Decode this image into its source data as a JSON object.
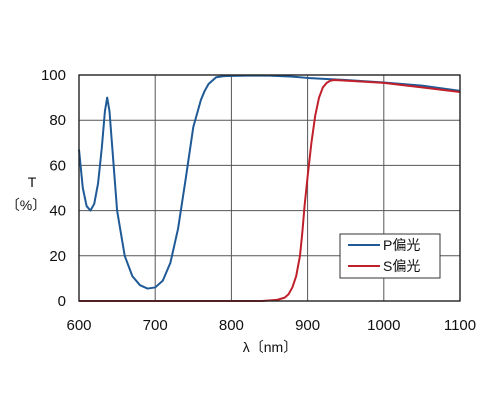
{
  "chart_data": {
    "type": "line",
    "xlabel": "λ〔nm〕",
    "ylabel_line1": "T",
    "ylabel_line2": "〔%〕",
    "xlim": [
      600,
      1100
    ],
    "ylim": [
      0,
      100
    ],
    "xticks": [
      600,
      700,
      800,
      900,
      1000,
      1100
    ],
    "yticks": [
      0,
      20,
      40,
      60,
      80,
      100
    ],
    "grid": true,
    "legend_position": "bottom-right",
    "series": [
      {
        "name": "P偏光",
        "color": "#1f5a96",
        "x": [
          600,
          605,
          610,
          615,
          620,
          625,
          630,
          634,
          637,
          640,
          645,
          650,
          660,
          670,
          680,
          690,
          700,
          710,
          720,
          730,
          740,
          750,
          760,
          765,
          770,
          780,
          790,
          800,
          820,
          850,
          880,
          900,
          950,
          1000,
          1050,
          1100
        ],
        "y": [
          67,
          50,
          42,
          40,
          43,
          52,
          68,
          84,
          90,
          84,
          62,
          40,
          20,
          11,
          7,
          5.5,
          6,
          9,
          17,
          32,
          54,
          77,
          89,
          93,
          96,
          99,
          99.5,
          99.6,
          99.7,
          99.7,
          99.3,
          98.7,
          97.8,
          96.7,
          95.3,
          93
        ]
      },
      {
        "name": "S偏光",
        "color": "#c0202a",
        "x": [
          600,
          700,
          800,
          840,
          860,
          870,
          875,
          880,
          885,
          890,
          893,
          896,
          900,
          905,
          910,
          915,
          920,
          925,
          930,
          935,
          950,
          1000,
          1050,
          1100
        ],
        "y": [
          0,
          0,
          0,
          0,
          0.5,
          1.5,
          3,
          6,
          11,
          20,
          30,
          42,
          55,
          70,
          82,
          90,
          94.5,
          96.5,
          97.5,
          97.8,
          97.5,
          96.5,
          94.5,
          92.5
        ]
      }
    ]
  }
}
